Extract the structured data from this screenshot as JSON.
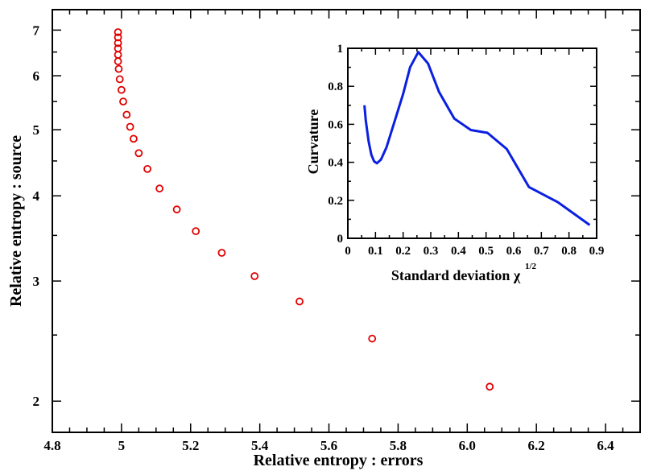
{
  "chart_data": [
    {
      "type": "scatter",
      "xlabel": "Relative entropy : errors",
      "ylabel": "Relative entropy : source",
      "xlim": [
        4.8,
        6.5
      ],
      "ylim": [
        1.8,
        7.5
      ],
      "yscale": "log",
      "xticks": [
        4.8,
        5.0,
        5.2,
        5.4,
        5.6,
        5.8,
        6.0,
        6.2,
        6.4
      ],
      "xtick_labels": [
        "4.8",
        "5",
        "5.2",
        "5.4",
        "5.6",
        "5.8",
        "6.0",
        "6.2",
        "6.4"
      ],
      "yticks": [
        2,
        3,
        4,
        5,
        6,
        7
      ],
      "ytick_labels": [
        "2",
        "3",
        "4",
        "5",
        "6",
        "7"
      ],
      "marker_color": "#e00000",
      "marker": "open-circle",
      "x": [
        4.99,
        4.99,
        4.99,
        4.99,
        4.99,
        4.99,
        4.992,
        4.995,
        5.0,
        5.005,
        5.015,
        5.025,
        5.035,
        5.05,
        5.075,
        5.11,
        5.16,
        5.215,
        5.29,
        5.385,
        5.515,
        5.725,
        6.065
      ],
      "y": [
        6.95,
        6.83,
        6.7,
        6.58,
        6.44,
        6.3,
        6.14,
        5.93,
        5.72,
        5.5,
        5.26,
        5.05,
        4.85,
        4.62,
        4.38,
        4.1,
        3.82,
        3.55,
        3.3,
        3.05,
        2.8,
        2.47,
        2.1
      ]
    },
    {
      "type": "line",
      "xlabel": "Standard deviation χ",
      "xlabel_superscript": "1/2",
      "ylabel": "Curvature",
      "xlim": [
        0,
        0.9
      ],
      "ylim": [
        0,
        1
      ],
      "xticks": [
        0,
        0.1,
        0.2,
        0.3,
        0.4,
        0.5,
        0.6,
        0.7,
        0.8,
        0.9
      ],
      "xtick_labels": [
        "0",
        "0.1",
        "0.2",
        "0.3",
        "0.4",
        "0.5",
        "0.6",
        "0.7",
        "0.8",
        "0.9"
      ],
      "yticks": [
        0,
        0.2,
        0.4,
        0.6,
        0.8,
        1
      ],
      "ytick_labels": [
        "0",
        "0.2",
        "0.4",
        "0.6",
        "0.8",
        "1"
      ],
      "line_color": "#0a1fe0",
      "x": [
        0.06,
        0.065,
        0.075,
        0.085,
        0.095,
        0.105,
        0.12,
        0.14,
        0.17,
        0.2,
        0.225,
        0.255,
        0.29,
        0.33,
        0.385,
        0.445,
        0.505,
        0.575,
        0.655,
        0.76,
        0.875
      ],
      "y": [
        0.7,
        0.62,
        0.51,
        0.44,
        0.405,
        0.395,
        0.415,
        0.48,
        0.62,
        0.76,
        0.9,
        0.98,
        0.92,
        0.77,
        0.63,
        0.57,
        0.555,
        0.47,
        0.27,
        0.19,
        0.07
      ]
    }
  ]
}
